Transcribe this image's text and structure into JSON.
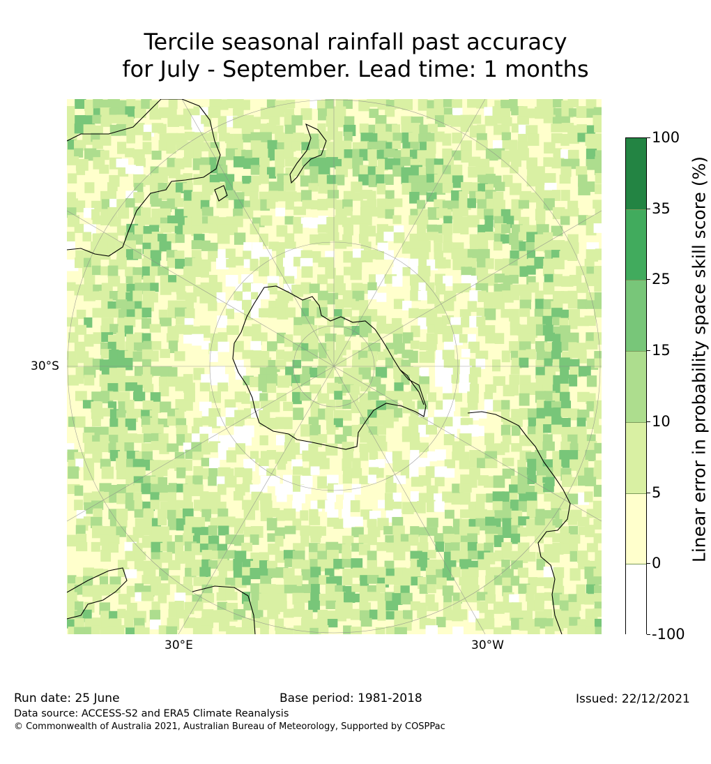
{
  "title": {
    "line1": "Tercile seasonal rainfall past accuracy",
    "line2": "for July - September. Lead time: 1 months"
  },
  "map": {
    "projection": "south polar stereographic",
    "lat_label": "30°S",
    "lon_labels": {
      "east": "30°E",
      "west": "30°W"
    },
    "ocean_base_color": "#ffffcc",
    "coast_color": "#000000",
    "grid_color": "#888888"
  },
  "colorbar": {
    "label": "Linear error in probability space skill score (%)",
    "ticks": [
      "100",
      "35",
      "25",
      "15",
      "10",
      "5",
      "0",
      "-100"
    ],
    "bins": [
      {
        "range": "35–100",
        "color": "#238443"
      },
      {
        "range": "25–35",
        "color": "#41ab5d"
      },
      {
        "range": "15–25",
        "color": "#78c679"
      },
      {
        "range": "10–15",
        "color": "#addd8e"
      },
      {
        "range": "5–10",
        "color": "#d9f0a3"
      },
      {
        "range": "0–5",
        "color": "#ffffcc"
      },
      {
        "range": "-100–0",
        "color": "#ffffff"
      }
    ]
  },
  "footer": {
    "run_date": "Run date: 25 June",
    "base_period": "Base period: 1981-2018",
    "issued": "Issued: 22/12/2021",
    "data_source": "Data source: ACCESS-S2 and ERA5 Climate Reanalysis",
    "copyright": "© Commonwealth of Australia 2021, Australian Bureau of Meteorology, Supported by COSPPac"
  }
}
